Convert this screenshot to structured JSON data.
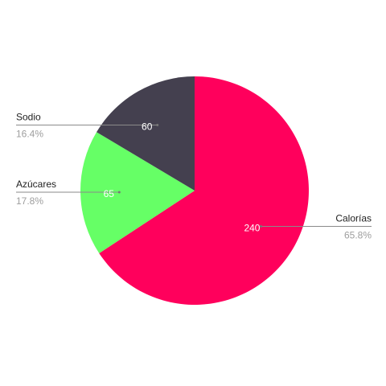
{
  "chart_data": {
    "type": "pie",
    "categories": [
      "Calorías",
      "Azúcares",
      "Sodio"
    ],
    "values": [
      240,
      65,
      60
    ],
    "percent_labels": [
      "65.8%",
      "17.8%",
      "16.4%"
    ],
    "value_labels": [
      "240",
      "65",
      "60"
    ],
    "colors": [
      "#ff005c",
      "#66ff66",
      "#44404f"
    ],
    "start_angle_deg": 0,
    "direction": "clockwise",
    "legend": "none",
    "label_style": "callout"
  }
}
